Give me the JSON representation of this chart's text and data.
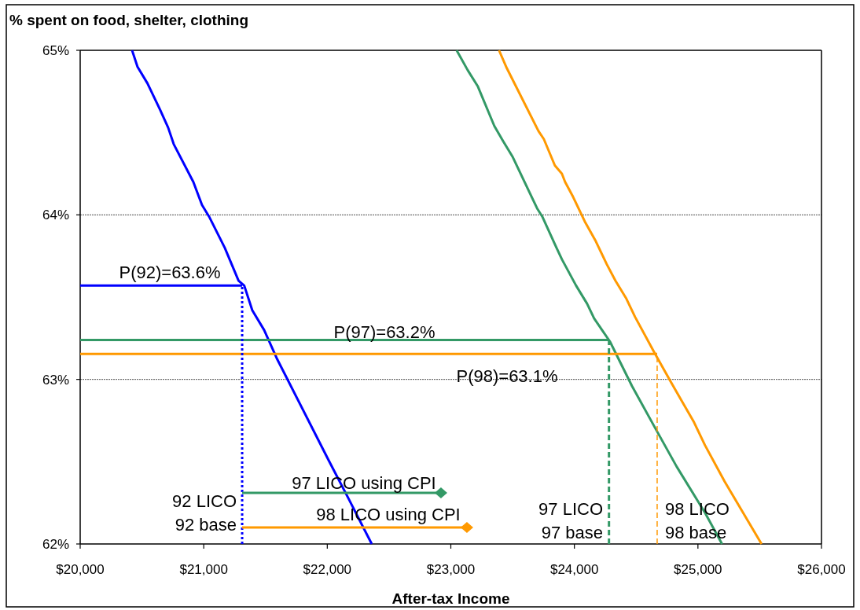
{
  "chart_data": {
    "type": "line",
    "ylabel": "% spent on food, shelter, clothing",
    "xlabel": "After-tax Income",
    "xlim": [
      20000,
      26000
    ],
    "ylim": [
      62,
      65
    ],
    "xticks": [
      {
        "value": 20000,
        "label": "$20,000"
      },
      {
        "value": 21000,
        "label": "$21,000"
      },
      {
        "value": 22000,
        "label": "$22,000"
      },
      {
        "value": 23000,
        "label": "$23,000"
      },
      {
        "value": 24000,
        "label": "$24,000"
      },
      {
        "value": 25000,
        "label": "$25,000"
      },
      {
        "value": 26000,
        "label": "$26,000"
      }
    ],
    "yticks": [
      {
        "value": 62,
        "label": "62%"
      },
      {
        "value": 63,
        "label": "63%"
      },
      {
        "value": 64,
        "label": "64%"
      },
      {
        "value": 65,
        "label": "65%"
      }
    ],
    "grid": "y",
    "series": [
      {
        "color": "#0000ff",
        "line_style": "solid",
        "x": [
          20420,
          20464,
          20544,
          20646,
          20712,
          20757,
          20916,
          20986,
          21043,
          21170,
          21282,
          21328,
          21393,
          21489,
          21590,
          22010,
          22169,
          22360
        ],
        "values": [
          65,
          64.9,
          64.8,
          64.64,
          64.53,
          64.43,
          64.2,
          64.06,
          63.99,
          63.8,
          63.6,
          63.57,
          63.42,
          63.3,
          63.13,
          62.51,
          62.28,
          62
        ]
      },
      {
        "color": "#339966",
        "line_style": "solid",
        "x": [
          23047,
          23136,
          23219,
          23352,
          23422,
          23502,
          23698,
          23740,
          23855,
          23899,
          24014,
          24103,
          24160,
          24288,
          24466,
          24650,
          24828,
          25057,
          25195
        ],
        "values": [
          65,
          64.88,
          64.78,
          64.54,
          64.45,
          64.35,
          64.04,
          63.99,
          63.8,
          63.73,
          63.57,
          63.46,
          63.37,
          63.23,
          62.96,
          62.71,
          62.47,
          62.19,
          62
        ]
      },
      {
        "color": "#ff9900",
        "line_style": "solid",
        "x": [
          23390,
          23454,
          23709,
          23753,
          23842,
          23899,
          23925,
          23989,
          24084,
          24173,
          24262,
          24332,
          24421,
          24491,
          24650,
          24784,
          24968,
          25057,
          25216,
          25515
        ],
        "values": [
          65,
          64.89,
          64.51,
          64.46,
          64.3,
          64.25,
          64.2,
          64.11,
          63.96,
          63.84,
          63.7,
          63.6,
          63.49,
          63.38,
          63.16,
          62.98,
          62.74,
          62.6,
          62.38,
          62
        ]
      },
      {
        "color": "#0000ff",
        "line_style": "solid",
        "x": [
          20000,
          21311
        ],
        "values": [
          63.57,
          63.57
        ]
      },
      {
        "color": "#339966",
        "line_style": "solid",
        "x": [
          20000,
          24280
        ],
        "values": [
          63.24,
          63.24
        ]
      },
      {
        "color": "#ff9900",
        "line_style": "solid",
        "x": [
          20000,
          24670
        ],
        "values": [
          63.155,
          63.155
        ]
      },
      {
        "color": "#0000ff",
        "line_style": "dotted",
        "x": [
          21311,
          21311
        ],
        "values": [
          62,
          63.57
        ]
      },
      {
        "color": "#339966",
        "line_style": "dashed",
        "x": [
          24280,
          24280
        ],
        "values": [
          62,
          63.24
        ]
      },
      {
        "color": "#ff9900",
        "line_style": "dashed",
        "x": [
          24670,
          24670
        ],
        "values": [
          62,
          63.155
        ]
      }
    ],
    "annotations": [
      "P(92)=63.6%",
      "P(97)=63.2%",
      "P(98)=63.1%",
      {
        "text": "97 LICO using CPI",
        "x": 22920,
        "y": 62.31
      },
      {
        "text": "98 LICO using CPI",
        "x": 23130,
        "y": 62.1
      },
      "92 LICO",
      "92 base",
      "97 LICO",
      "97 base",
      "98 LICO",
      "98 base"
    ]
  }
}
